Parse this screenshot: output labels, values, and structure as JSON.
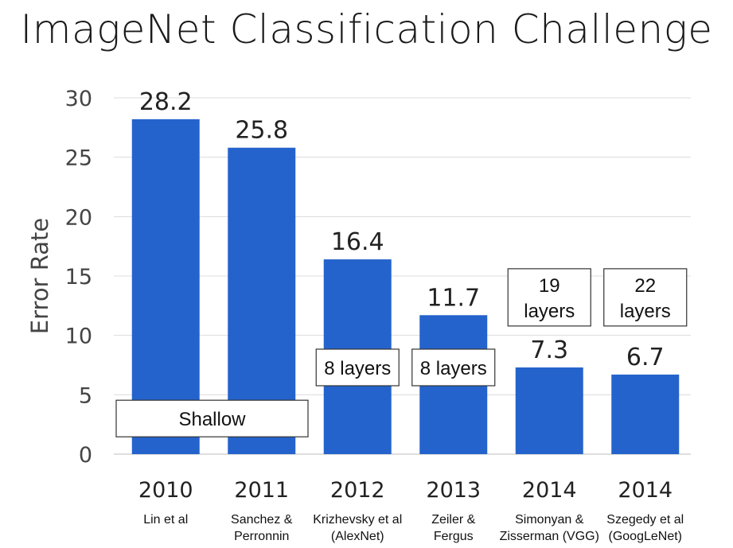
{
  "title": "ImageNet Classification Challenge",
  "chart_data": {
    "type": "bar",
    "title": "ImageNet Classification Challenge",
    "xlabel": "",
    "ylabel": "Error Rate",
    "ylim": [
      0,
      30
    ],
    "yticks": [
      0,
      5,
      10,
      15,
      20,
      25,
      30
    ],
    "grid": true,
    "bar_color": "#2563cc",
    "categories": [
      {
        "year": "2010",
        "author": [
          "Lin et al"
        ]
      },
      {
        "year": "2011",
        "author": [
          "Sanchez &",
          "Perronnin"
        ]
      },
      {
        "year": "2012",
        "author": [
          "Krizhevsky et al",
          "(AlexNet)"
        ]
      },
      {
        "year": "2013",
        "author": [
          "Zeiler &",
          "Fergus"
        ]
      },
      {
        "year": "2014",
        "author": [
          "Simonyan &",
          "Zisserman (VGG)"
        ]
      },
      {
        "year": "2014",
        "author": [
          "Szegedy et al",
          "(GoogLeNet)"
        ]
      }
    ],
    "values": [
      28.2,
      25.8,
      16.4,
      11.7,
      7.3,
      6.7
    ],
    "value_labels": [
      "28.2",
      "25.8",
      "16.4",
      "11.7",
      "7.3",
      "6.7"
    ],
    "annotations": [
      {
        "text": [
          "Shallow"
        ],
        "bars": [
          0,
          1
        ],
        "value": 3
      },
      {
        "text": [
          "8 layers"
        ],
        "bars": [
          2
        ],
        "value": 7.3
      },
      {
        "text": [
          "8 layers"
        ],
        "bars": [
          3
        ],
        "value": 7.3
      },
      {
        "text": [
          "19",
          "layers"
        ],
        "bars": [
          4
        ],
        "value": 13.2
      },
      {
        "text": [
          "22",
          "layers"
        ],
        "bars": [
          5
        ],
        "value": 13.2
      }
    ]
  }
}
